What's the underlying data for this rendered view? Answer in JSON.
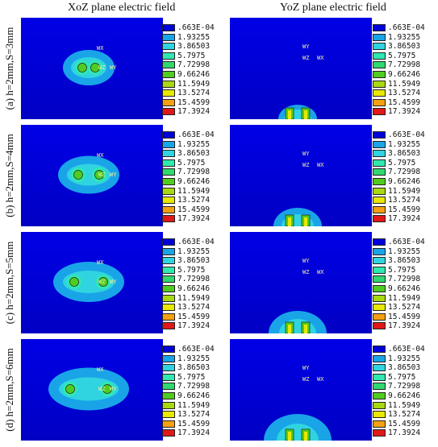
{
  "column_titles": [
    "XoZ plane  electric field",
    "YoZ plane electric field"
  ],
  "rows": [
    {
      "label": "(a) h=2mm,S=3mm",
      "axis_xoz": [
        "WX",
        "WY",
        "WZ"
      ],
      "axis_yoz": [
        "WY",
        "WZ",
        "WX"
      ]
    },
    {
      "label": "(b) h=2mm,S=4mm",
      "axis_xoz": [
        "WX",
        "WY",
        "WZ"
      ],
      "axis_yoz": [
        "WY",
        "WZ",
        "WX"
      ]
    },
    {
      "label": "(c) h=2mm,S=5mm",
      "axis_xoz": [
        "WX",
        "WY",
        "WZ"
      ],
      "axis_yoz": [
        "WY",
        "WZ",
        "WX"
      ]
    },
    {
      "label": "(d) h=2mm,S=6mm",
      "axis_xoz": [
        "WX",
        "WY",
        "WZ"
      ],
      "axis_yoz": [
        "WY",
        "WZ",
        "WX"
      ]
    }
  ],
  "legend": {
    "values": [
      ".663E-04",
      "1.93255",
      "3.86503",
      "5.7975",
      "7.72998",
      "9.66246",
      "11.5949",
      "13.5274",
      "15.4599",
      "17.3924"
    ],
    "colors": [
      "#0000d8",
      "#1aa4e8",
      "#30d4e0",
      "#30e8b0",
      "#30d870",
      "#50cc20",
      "#a8d810",
      "#e8e800",
      "#f4a010",
      "#e01818"
    ]
  }
}
